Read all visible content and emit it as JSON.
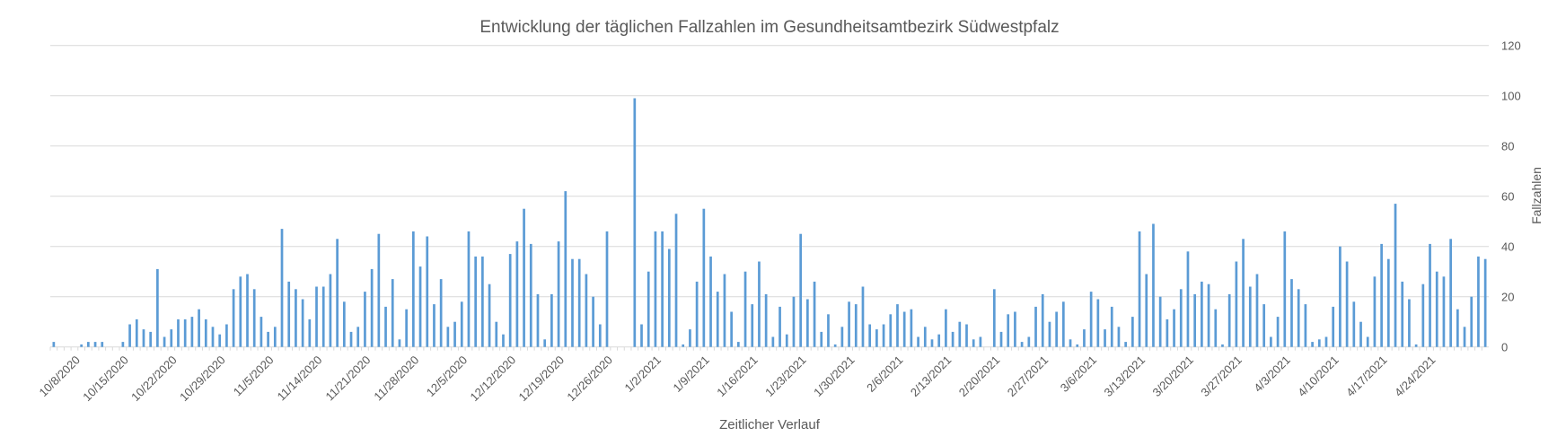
{
  "chart_data": {
    "type": "bar",
    "title": "Entwicklung der täglichen Fallzahlen im Gesundheitsamtbezirk Südwestpfalz",
    "xlabel": "Zeitlicher Verlauf",
    "ylabel": "Fallzahlen",
    "ylim": [
      0,
      120
    ],
    "yticks": [
      "0",
      "20",
      "40",
      "60",
      "80",
      "100",
      "120"
    ],
    "y_axis_side": "right",
    "grid": true,
    "bar_color": "#5b9bd5",
    "x_tick_every": 7,
    "x_tick_labels": [
      "10/8/2020",
      "10/15/2020",
      "10/22/2020",
      "10/29/2020",
      "11/5/2020",
      "11/14/2020",
      "11/21/2020",
      "11/28/2020",
      "12/5/2020",
      "12/12/2020",
      "12/19/2020",
      "12/26/2020",
      "1/2/2021",
      "1/9/2021",
      "1/16/2021",
      "1/23/2021",
      "1/30/2021",
      "2/6/2021",
      "2/13/2021",
      "2/20/2021",
      "2/27/2021",
      "3/6/2021",
      "3/13/2021",
      "3/20/2021",
      "3/27/2021",
      "4/3/2021",
      "4/10/2021",
      "4/17/2021",
      "4/24/2021"
    ],
    "values": [
      2,
      0,
      0,
      0,
      1,
      2,
      2,
      2,
      0,
      0,
      2,
      9,
      11,
      7,
      6,
      31,
      4,
      7,
      11,
      11,
      12,
      15,
      11,
      8,
      5,
      9,
      23,
      28,
      29,
      23,
      12,
      6,
      8,
      47,
      26,
      23,
      19,
      11,
      24,
      24,
      29,
      43,
      18,
      6,
      8,
      22,
      31,
      45,
      16,
      27,
      3,
      15,
      46,
      32,
      44,
      17,
      27,
      8,
      10,
      18,
      46,
      36,
      36,
      25,
      10,
      5,
      37,
      42,
      55,
      41,
      21,
      3,
      21,
      42,
      62,
      35,
      35,
      29,
      20,
      9,
      46,
      0,
      0,
      0,
      99,
      9,
      30,
      46,
      46,
      39,
      53,
      1,
      7,
      26,
      55,
      36,
      22,
      29,
      14,
      2,
      30,
      17,
      34,
      21,
      4,
      16,
      5,
      20,
      45,
      19,
      26,
      6,
      13,
      1,
      8,
      18,
      17,
      24,
      9,
      7,
      9,
      13,
      17,
      14,
      15,
      4,
      8,
      3,
      5,
      15,
      6,
      10,
      9,
      3,
      4,
      0,
      23,
      6,
      13,
      14,
      2,
      4,
      16,
      21,
      10,
      14,
      18,
      3,
      1,
      7,
      22,
      19,
      7,
      16,
      8,
      2,
      12,
      46,
      29,
      49,
      20,
      11,
      15,
      23,
      38,
      21,
      26,
      25,
      15,
      1,
      21,
      34,
      43,
      24,
      29,
      17,
      4,
      12,
      46,
      27,
      23,
      17,
      2,
      3,
      4,
      16,
      40,
      34,
      18,
      10,
      4,
      28,
      41,
      35,
      57,
      26,
      19,
      1,
      25,
      41,
      30,
      28,
      43,
      15,
      8,
      20,
      36,
      35
    ]
  }
}
